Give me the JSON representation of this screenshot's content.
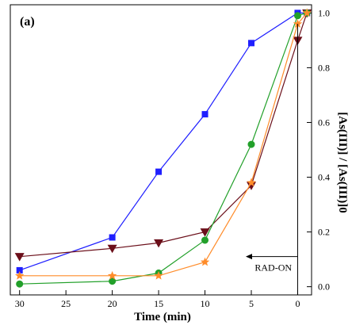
{
  "chart_data": {
    "type": "line",
    "panel_label": "(a)",
    "title": "",
    "xlabel": "Time (min)",
    "ylabel": "[As(III)] / [As(III)]0",
    "x_reversed": true,
    "y_ticks_on_right": true,
    "xlim": [
      31,
      -1.5
    ],
    "ylim": [
      -0.03,
      1.03
    ],
    "x_ticks": [
      30,
      25,
      20,
      15,
      10,
      5,
      0
    ],
    "x_tick_labels": [
      "30",
      "25",
      "20",
      "15",
      "10",
      "5",
      "0"
    ],
    "y_ticks": [
      0.0,
      0.2,
      0.4,
      0.6,
      0.8,
      1.0
    ],
    "y_tick_labels": [
      "0.0",
      "0.2",
      "0.4",
      "0.6",
      "0.8",
      "1.0"
    ],
    "grid": false,
    "annotation": {
      "text": "RAD-ON",
      "arrow_from_x": 0,
      "arrow_to_x": 5.6,
      "y": 0.11
    },
    "series": [
      {
        "marker": "square",
        "color": "#1f1fff",
        "x": [
          -1,
          0,
          5,
          10,
          15,
          20,
          30
        ],
        "y": [
          1.0,
          1.0,
          0.89,
          0.63,
          0.42,
          0.18,
          0.06
        ]
      },
      {
        "marker": "triangle-down",
        "color": "#6b0f1a",
        "x": [
          -1,
          0,
          5,
          10,
          15,
          20,
          30
        ],
        "y": [
          1.0,
          0.9,
          0.37,
          0.2,
          0.16,
          0.14,
          0.11
        ]
      },
      {
        "marker": "circle",
        "color": "#22a02a",
        "x": [
          -1,
          0,
          5,
          10,
          15,
          20,
          30
        ],
        "y": [
          1.0,
          0.99,
          0.52,
          0.17,
          0.05,
          0.02,
          0.01
        ]
      },
      {
        "marker": "star",
        "color": "#ff8c2a",
        "x": [
          -1,
          0,
          5,
          10,
          15,
          20,
          30
        ],
        "y": [
          1.0,
          0.96,
          0.38,
          0.09,
          0.04,
          0.04,
          0.04
        ]
      }
    ]
  }
}
